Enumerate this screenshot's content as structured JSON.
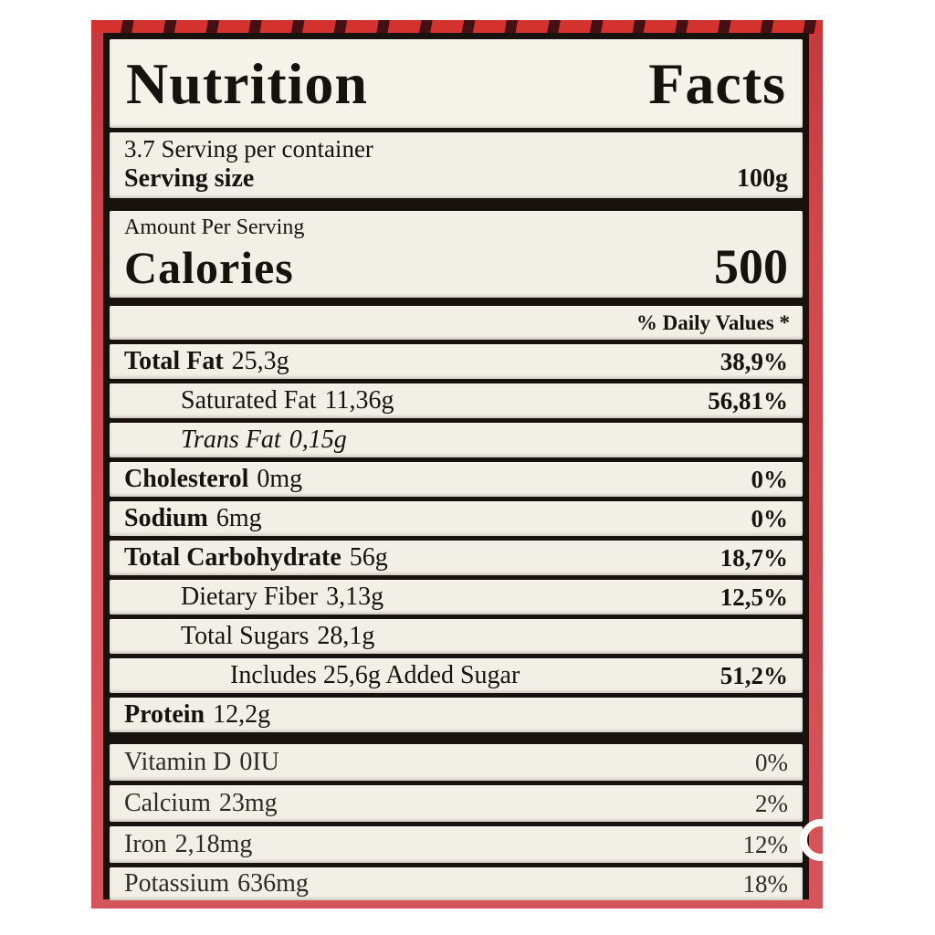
{
  "label": {
    "title": "Nutrition Facts",
    "servings_per_container": "3.7 Serving per container",
    "serving_size_label": "Serving size",
    "serving_size_value": "100g",
    "amount_per_serving": "Amount Per Serving",
    "calories_label": "Calories",
    "calories_value": "500",
    "daily_values_header": "% Daily Values *",
    "nutrients": [
      {
        "name": "Total Fat",
        "amount": "25,3g",
        "dv": "38,9%"
      },
      {
        "name": "Saturated Fat",
        "amount": "11,36g",
        "dv": "56,81%"
      },
      {
        "name": "Trans Fat",
        "amount": "0,15g",
        "dv": ""
      },
      {
        "name": "Cholesterol",
        "amount": "0mg",
        "dv": "0%"
      },
      {
        "name": "Sodium",
        "amount": "6mg",
        "dv": "0%"
      },
      {
        "name": "Total Carbohydrate",
        "amount": "56g",
        "dv": "18,7%"
      },
      {
        "name": "Dietary Fiber",
        "amount": "3,13g",
        "dv": "12,5%"
      },
      {
        "name": "Total Sugars",
        "amount": "28,1g",
        "dv": ""
      },
      {
        "name": "Includes 25,6g Added Sugar",
        "amount": "",
        "dv": "51,2%"
      },
      {
        "name": "Protein",
        "amount": "12,2g",
        "dv": ""
      }
    ],
    "micronutrients": [
      {
        "name": "Vitamin D",
        "amount": "0IU",
        "dv": "0%"
      },
      {
        "name": "Calcium",
        "amount": "23mg",
        "dv": "2%"
      },
      {
        "name": "Iron",
        "amount": "2,18mg",
        "dv": "12%"
      },
      {
        "name": "Potassium",
        "amount": "636mg",
        "dv": "18%"
      }
    ],
    "colors": {
      "package_red": "#cf4a4e",
      "band_red": "#d4322e",
      "band_dark": "#441014",
      "panel_border": "#17120e",
      "label_bg": "#f2efe6",
      "text": "#16130f"
    }
  }
}
